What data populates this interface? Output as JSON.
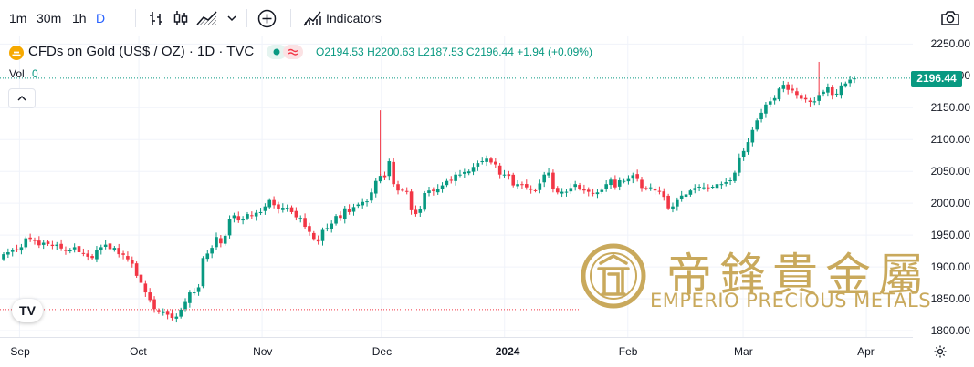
{
  "toolbar": {
    "intervals": [
      "1m",
      "30m",
      "1h",
      "D"
    ],
    "active_interval": "D",
    "indicators_label": "Indicators",
    "icons": [
      "bar-chart-type-icon",
      "candle-chart-type-icon",
      "area-chart-type-icon",
      "chevron-down-icon",
      "add-compare-icon",
      "indicators-icon",
      "camera-snapshot-icon"
    ]
  },
  "legend": {
    "symbol": "CFDs on Gold (US$ / OZ) · 1D · TVC",
    "open": "O2194.53",
    "high": "H2200.63",
    "low": "L2187.53",
    "close": "C2196.44",
    "change": "+1.94 (+0.09%)",
    "volume_label": "Vol",
    "volume_value": "0"
  },
  "price_axis": [
    "2250.00",
    "2200.00",
    "2150.00",
    "2100.00",
    "2050.00",
    "2000.00",
    "1950.00",
    "1900.00",
    "1850.00",
    "1800.00"
  ],
  "last_price": "2196.44",
  "time_axis": [
    "Sep",
    "Oct",
    "Nov",
    "Dec",
    "2024",
    "Feb",
    "Mar",
    "Apr"
  ],
  "watermark": {
    "chinese": "帝鋒貴金屬",
    "english": "EMPERIO PRECIOUS METALS"
  },
  "tv_logo": "TV",
  "colors": {
    "up": "#089981",
    "down": "#f23645",
    "gold": "#c9a95c",
    "accent": "#2962ff"
  },
  "chart_data": {
    "type": "candlestick",
    "title": "CFDs on Gold (US$ / OZ) · 1D · TVC",
    "ylim": [
      1790,
      2262
    ],
    "x_labels": [
      "Sep",
      "Oct",
      "Nov",
      "Dec",
      "2024",
      "Feb",
      "Mar",
      "Apr"
    ],
    "grid": true,
    "closes": [
      1920,
      1923,
      1926,
      1927,
      1931,
      1945,
      1944,
      1942,
      1934,
      1938,
      1936,
      1933,
      1935,
      1929,
      1925,
      1927,
      1931,
      1923,
      1921,
      1916,
      1914,
      1927,
      1931,
      1935,
      1928,
      1930,
      1920,
      1919,
      1912,
      1905,
      1886,
      1875,
      1860,
      1848,
      1834,
      1829,
      1829,
      1825,
      1820,
      1822,
      1833,
      1845,
      1860,
      1860,
      1868,
      1914,
      1921,
      1930,
      1947,
      1937,
      1949,
      1975,
      1981,
      1973,
      1975,
      1983,
      1980,
      1985,
      1986,
      1995,
      2005,
      1997,
      1991,
      1993,
      1993,
      1986,
      1978,
      1977,
      1963,
      1955,
      1944,
      1940,
      1958,
      1961,
      1968,
      1980,
      1977,
      1992,
      1986,
      1994,
      1998,
      2002,
      2003,
      2017,
      2035,
      2043,
      2041,
      2066,
      2030,
      2020,
      2021,
      2019,
      1989,
      1983,
      1991,
      2016,
      2020,
      2019,
      2023,
      2028,
      2035,
      2036,
      2045,
      2045,
      2049,
      2050,
      2057,
      2063,
      2066,
      2070,
      2064,
      2061,
      2045,
      2045,
      2043,
      2028,
      2030,
      2029,
      2025,
      2021,
      2020,
      2031,
      2045,
      2048,
      2023,
      2017,
      2018,
      2018,
      2024,
      2030,
      2023,
      2020,
      2018,
      2015,
      2017,
      2021,
      2030,
      2037,
      2025,
      2036,
      2035,
      2038,
      2044,
      2038,
      2024,
      2023,
      2025,
      2020,
      2018,
      2010,
      1992,
      1995,
      2005,
      2012,
      2014,
      2020,
      2024,
      2026,
      2025,
      2024,
      2026,
      2030,
      2030,
      2033,
      2036,
      2048,
      2072,
      2082,
      2096,
      2115,
      2130,
      2142,
      2155,
      2160,
      2165,
      2180,
      2186,
      2178,
      2177,
      2170,
      2164,
      2163,
      2159,
      2160,
      2170,
      2175,
      2182,
      2170,
      2172,
      2185,
      2188,
      2194,
      2196
    ],
    "x_axis_from": "2023-08-28",
    "x_axis_to": "2024-03-29",
    "last_close": 2196.44
  }
}
